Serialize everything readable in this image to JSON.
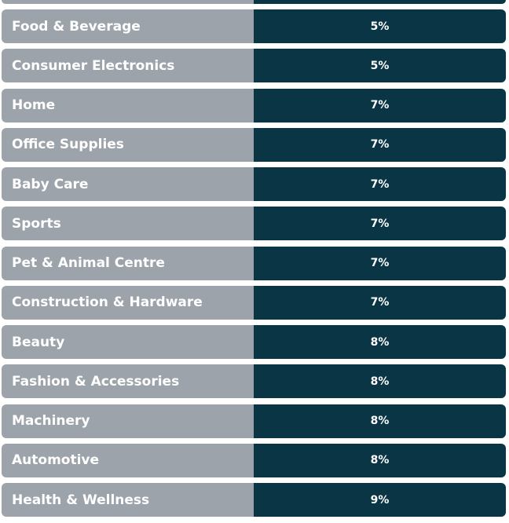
{
  "colors": {
    "label_bg": "#9ca3aa",
    "value_bg": "#093545",
    "text": "#ffffff"
  },
  "rows": [
    {
      "category": "Food & Beverage",
      "value": "5%"
    },
    {
      "category": "Consumer Electronics",
      "value": "5%"
    },
    {
      "category": "Home",
      "value": "7%"
    },
    {
      "category": "Office Supplies",
      "value": "7%"
    },
    {
      "category": "Baby Care",
      "value": "7%"
    },
    {
      "category": "Sports",
      "value": "7%"
    },
    {
      "category": "Pet & Animal Centre",
      "value": "7%"
    },
    {
      "category": "Construction & Hardware",
      "value": "7%"
    },
    {
      "category": "Beauty",
      "value": "8%"
    },
    {
      "category": "Fashion & Accessories",
      "value": "8%"
    },
    {
      "category": "Machinery",
      "value": "8%"
    },
    {
      "category": "Automotive",
      "value": "8%"
    },
    {
      "category": "Health & Wellness",
      "value": "9%"
    }
  ]
}
